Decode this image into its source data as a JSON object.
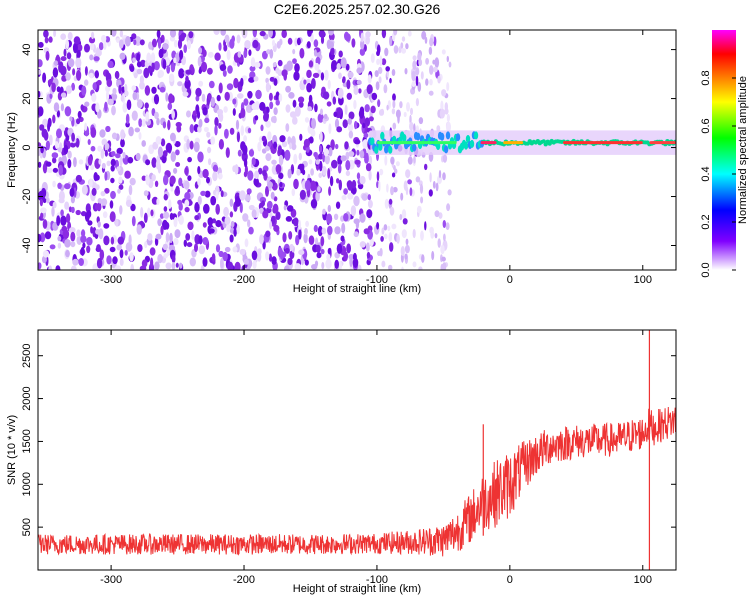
{
  "figure": {
    "title": "C2E6.2025.257.02.30.G26",
    "background": "#ffffff"
  },
  "chart_data": [
    {
      "type": "heatmap",
      "name": "spectrogram",
      "xlabel": "Height of straight line (km)",
      "ylabel": "Frequency (Hz)",
      "xlim": [
        -355,
        125
      ],
      "ylim": [
        -50,
        48
      ],
      "x_ticks": [
        -300,
        -200,
        -100,
        0,
        100
      ],
      "y_ticks": [
        -40,
        -20,
        0,
        20,
        40
      ],
      "x_tick_labels": [
        "-300",
        "-200",
        "-100",
        "0",
        "100"
      ],
      "y_tick_labels": [
        "-40",
        "-20",
        "0",
        "20",
        "40"
      ],
      "colorbar": {
        "label": "Normalized spectral amplitude",
        "range": [
          0.0,
          1.0
        ],
        "ticks": [
          0.0,
          0.2,
          0.4,
          0.6,
          0.8
        ],
        "tick_labels": [
          "0.0",
          "0.2",
          "0.4",
          "0.6",
          "0.8"
        ],
        "colormap": [
          "#ffffff",
          "#8000ff",
          "#0000ff",
          "#00ffff",
          "#00ff00",
          "#ffff00",
          "#ff8000",
          "#ff0000",
          "#ff00ff"
        ]
      },
      "features": [
        {
          "description": "diffuse noise",
          "x_range": [
            -355,
            -100
          ],
          "frequency_range": [
            -50,
            48
          ],
          "amplitude": 0.05
        },
        {
          "description": "fading noise",
          "x_range": [
            -100,
            -45
          ],
          "frequency_range": [
            -50,
            48
          ],
          "amplitude": 0.03
        },
        {
          "description": "signal tone",
          "x_range": [
            -105,
            125
          ],
          "frequency_hz": 2,
          "amplitude": 0.9
        }
      ]
    },
    {
      "type": "line",
      "name": "snr",
      "xlabel": "Height of straight line (km)",
      "ylabel": "SNR (10 * v/v)",
      "xlim": [
        -355,
        125
      ],
      "ylim": [
        0,
        2800
      ],
      "x_ticks": [
        -300,
        -200,
        -100,
        0,
        100
      ],
      "y_ticks": [
        500,
        1000,
        1500,
        2000,
        2500
      ],
      "x_tick_labels": [
        "-300",
        "-200",
        "-100",
        "0",
        "100"
      ],
      "y_tick_labels": [
        "500",
        "1000",
        "1500",
        "2000",
        "2500"
      ],
      "color": "#ee3333",
      "series": [
        {
          "name": "SNR",
          "x": [
            -355,
            -300,
            -250,
            -200,
            -150,
            -100,
            -70,
            -50,
            -40,
            -30,
            -20,
            -10,
            0,
            10,
            20,
            30,
            50,
            80,
            100,
            105,
            108,
            115,
            125
          ],
          "mean": [
            300,
            300,
            300,
            300,
            300,
            310,
            330,
            350,
            450,
            600,
            800,
            900,
            1000,
            1200,
            1350,
            1450,
            1500,
            1520,
            1600,
            1700,
            1650,
            1700,
            1750
          ],
          "spread": [
            120,
            120,
            120,
            120,
            120,
            120,
            150,
            200,
            250,
            300,
            350,
            400,
            400,
            300,
            250,
            220,
            200,
            200,
            200,
            200,
            200,
            200,
            200
          ]
        }
      ],
      "annotations": [
        {
          "x": -20,
          "y_peak": 1700,
          "description": "spike"
        },
        {
          "x": 105,
          "y_peak": 2800,
          "y_dip": 0,
          "description": "spike and dip"
        }
      ]
    }
  ]
}
